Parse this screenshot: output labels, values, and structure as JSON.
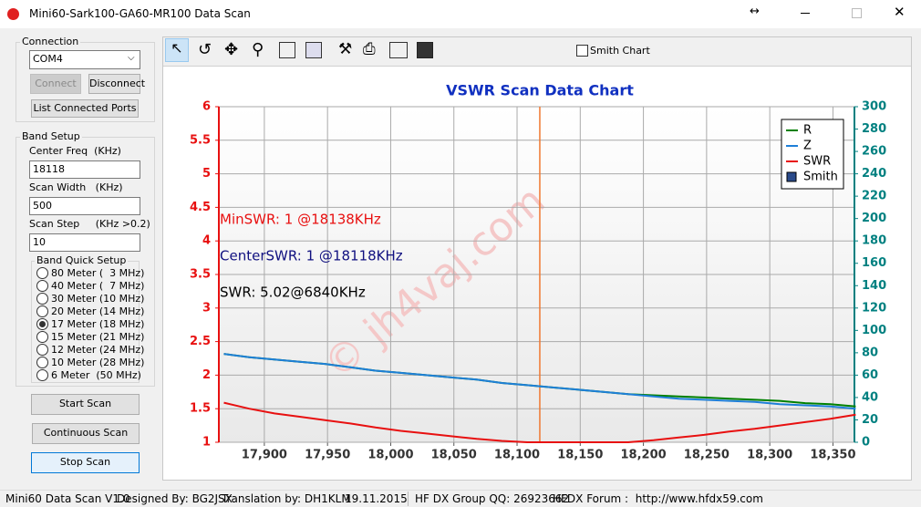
{
  "window": {
    "title": "Mini60-Sark100-GA60-MR100 Data Scan"
  },
  "connection": {
    "label": "Connection",
    "port": "COM4",
    "connect": "Connect",
    "disconnect": "Disconnect",
    "list_ports": "List Connected Ports"
  },
  "band_setup": {
    "label": "Band Setup",
    "center_freq_label": "Center Freq  (KHz)",
    "center_freq": "18118",
    "scan_width_label": "Scan Width   (KHz)",
    "scan_width": "500",
    "scan_step_label": "Scan Step     (KHz >0.2)",
    "scan_step": "10",
    "quick_setup_label": "Band Quick Setup",
    "bands": [
      "80 Meter (  3 MHz)",
      "40 Meter (  7 MHz)",
      "30 Meter (10 MHz)",
      "20 Meter (14 MHz)",
      "17 Meter (18 MHz)",
      "15 Meter (21 MHz)",
      "12 Meter (24 MHz)",
      "10 Meter (28 MHz)",
      "6 Meter  (50 MHz)"
    ],
    "selected_band": 4
  },
  "buttons": {
    "start": "Start Scan",
    "continuous": "Continuous Scan",
    "stop": "Stop Scan"
  },
  "toolbar": {
    "smith_chart": "Smith Chart"
  },
  "chart_data": {
    "type": "line",
    "title": "VSWR Scan Data Chart",
    "x": [
      17868,
      17888,
      17908,
      17928,
      17948,
      17968,
      17988,
      18008,
      18028,
      18048,
      18068,
      18088,
      18108,
      18128,
      18148,
      18168,
      18188,
      18208,
      18228,
      18248,
      18268,
      18288,
      18308,
      18328,
      18348,
      18368
    ],
    "series": [
      {
        "name": "R",
        "color": "#008000",
        "axis": "y2",
        "values": [
          79,
          76,
          74,
          72,
          70,
          67,
          64,
          62,
          60,
          58,
          56,
          53,
          51,
          49,
          47,
          45,
          43,
          42,
          41,
          40,
          39,
          38,
          37,
          35,
          34,
          32
        ]
      },
      {
        "name": "Z",
        "color": "#1e7fd8",
        "axis": "y2",
        "values": [
          79,
          76,
          74,
          72,
          70,
          67,
          64,
          62,
          60,
          58,
          56,
          53,
          51,
          49,
          47,
          45,
          43,
          41,
          39,
          38,
          37,
          36,
          34,
          33,
          32,
          30
        ]
      },
      {
        "name": "SWR",
        "color": "#e81010",
        "values": [
          1.59,
          1.5,
          1.43,
          1.38,
          1.33,
          1.28,
          1.22,
          1.17,
          1.13,
          1.09,
          1.05,
          1.02,
          1,
          1,
          1,
          1,
          1,
          1.03,
          1.07,
          1.11,
          1.16,
          1.2,
          1.25,
          1.3,
          1.35,
          1.41
        ]
      }
    ],
    "legend": {
      "position": "upper right",
      "extra": [
        {
          "name": "Smith",
          "color": "#2a4a8a"
        }
      ]
    },
    "xlim": [
      17864,
      18367
    ],
    "xticks": [
      {
        "value": 17900,
        "label": "17,900"
      },
      {
        "value": 17950,
        "label": "17,950"
      },
      {
        "value": 18000,
        "label": "18,000"
      },
      {
        "value": 18050,
        "label": "18,050"
      },
      {
        "value": 18100,
        "label": "18,100"
      },
      {
        "value": 18150,
        "label": "18,150"
      },
      {
        "value": 18200,
        "label": "18,200"
      },
      {
        "value": 18250,
        "label": "18,250"
      },
      {
        "value": 18300,
        "label": "18,300"
      },
      {
        "value": 18350,
        "label": "18,350"
      }
    ],
    "ylim": [
      1,
      6
    ],
    "yticks": [
      1,
      1.5,
      2,
      2.5,
      3,
      3.5,
      4,
      4.5,
      5,
      5.5,
      6
    ],
    "y_color": "#e81010",
    "y2lim": [
      0,
      300
    ],
    "y2ticks": [
      0,
      20,
      40,
      60,
      80,
      100,
      120,
      140,
      160,
      180,
      200,
      220,
      240,
      260,
      280,
      300
    ],
    "y2_color": "#008080",
    "grid": true,
    "marker_x": 18118,
    "marker_color": "#f07830",
    "annotations": [
      {
        "text": "MinSWR: 1 @18138KHz",
        "color": "#e81010"
      },
      {
        "text": "CenterSWR: 1 @18118KHz",
        "color": "#101080"
      },
      {
        "text": "SWR: 5.02@6840KHz",
        "color": "#000000"
      }
    ],
    "watermark": "© jh4vaj.com"
  },
  "status_bar": [
    "Mini60 Data Scan V1.0",
    "Designed By: BG2JSX",
    "Translation by: DH1KLM",
    "19.11.2015",
    "HF DX Group QQ: 26923662",
    "HFDX Forum :  http://www.hfdx59.com"
  ]
}
